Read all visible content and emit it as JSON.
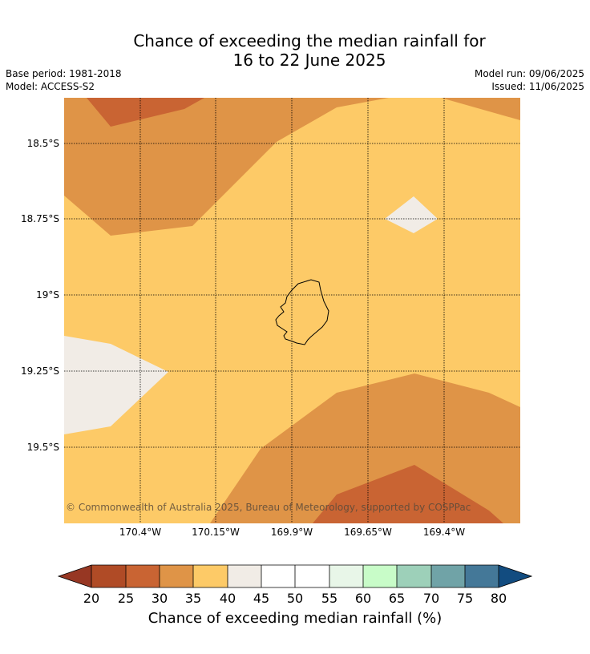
{
  "title_line1": "Chance of exceeding the median rainfall for",
  "title_line2": "16 to 22 June 2025",
  "base_period": "Base period: 1981-2018",
  "model": "Model: ACCESS-S2",
  "model_run": "Model run: 09/06/2025",
  "issued": "Issued: 11/06/2025",
  "copyright": "© Commonwealth of Australia 2025, Bureau of Meteorology, supported by COSPPac",
  "map": {
    "lat_labels": [
      "18.5°S",
      "18.75°S",
      "19°S",
      "19.25°S",
      "19.5°S"
    ],
    "lon_labels": [
      "170.4°W",
      "170.15°W",
      "169.9°W",
      "169.65°W",
      "169.4°W"
    ]
  },
  "colorbar": {
    "label": "Chance of exceeding median rainfall (%)",
    "ticks": [
      "20",
      "25",
      "30",
      "35",
      "40",
      "45",
      "50",
      "55",
      "60",
      "65",
      "70",
      "75",
      "80"
    ],
    "colors": {
      "under": "#973723",
      "c20_25": "#b04b26",
      "c25_30": "#c96433",
      "c30_35": "#df9447",
      "c35_40": "#fdca67",
      "c40_45": "#f1ece6",
      "c45_50": "#ffffff",
      "c50_55": "#ffffff",
      "c55_60": "#e8f6e8",
      "c60_65": "#c8fcc8",
      "c65_70": "#9dd0b9",
      "c70_75": "#70a3a7",
      "c75_80": "#447898",
      "over": "#124c80"
    }
  }
}
